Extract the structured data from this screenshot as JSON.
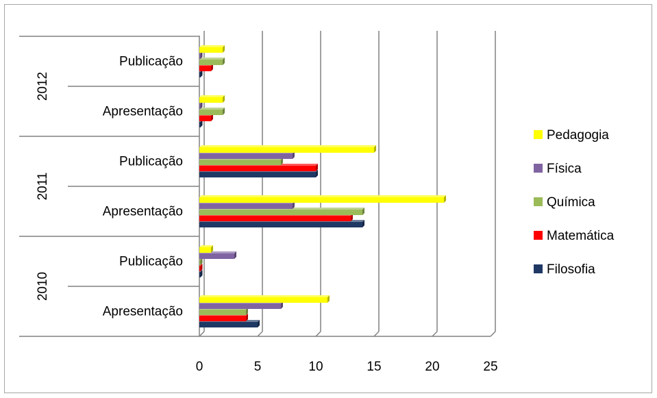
{
  "chart_data": {
    "type": "bar",
    "orientation": "horizontal",
    "style": "3d-clustered",
    "groups": [
      {
        "year": "2010",
        "categories": [
          "Apresentação",
          "Publicação"
        ]
      },
      {
        "year": "2011",
        "categories": [
          "Apresentação",
          "Publicação"
        ]
      },
      {
        "year": "2012",
        "categories": [
          "Apresentação",
          "Publicação"
        ]
      }
    ],
    "series": [
      {
        "name": "Filosofia",
        "color": "#1f3864",
        "values": [
          5,
          0,
          14,
          10,
          0,
          0
        ]
      },
      {
        "name": "Matemática",
        "color": "#ff0000",
        "values": [
          4,
          0,
          13,
          10,
          1,
          1
        ]
      },
      {
        "name": "Química",
        "color": "#9bbb59",
        "values": [
          4,
          0,
          14,
          7,
          2,
          2
        ]
      },
      {
        "name": "Física",
        "color": "#8064a2",
        "values": [
          7,
          3,
          8,
          8,
          0,
          0
        ]
      },
      {
        "name": "Pedagogia",
        "color": "#ffff00",
        "values": [
          11,
          1,
          21,
          15,
          2,
          2
        ]
      }
    ],
    "legend_order": [
      "Pedagogia",
      "Física",
      "Química",
      "Matemática",
      "Filosofia"
    ],
    "legend_position": "right",
    "xlim": [
      0,
      25
    ],
    "xticks": [
      "0",
      "5",
      "10",
      "15",
      "20",
      "25"
    ],
    "grid": true
  }
}
